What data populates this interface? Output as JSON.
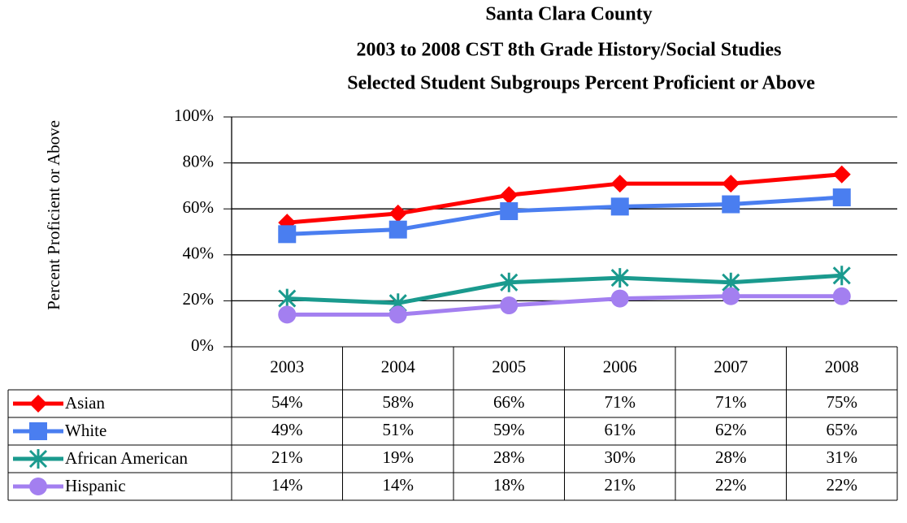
{
  "chart_data": {
    "type": "line",
    "title": [
      "Santa Clara County",
      "2003 to 2008 CST 8th Grade History/Social Studies",
      "Selected Student Subgroups Percent Proficient or Above"
    ],
    "y_label": "Percent Proficient or Above",
    "categories": [
      "2003",
      "2004",
      "2005",
      "2006",
      "2007",
      "2008"
    ],
    "series": [
      {
        "name": "Asian",
        "color": "#ff0000",
        "marker": "diamond",
        "values": [
          54,
          58,
          66,
          71,
          71,
          75
        ],
        "value_labels": [
          "54%",
          "58%",
          "66%",
          "71%",
          "71%",
          "75%"
        ]
      },
      {
        "name": "White",
        "color": "#4a7ef0",
        "marker": "square",
        "values": [
          49,
          51,
          59,
          61,
          62,
          65
        ],
        "value_labels": [
          "49%",
          "51%",
          "59%",
          "61%",
          "62%",
          "65%"
        ]
      },
      {
        "name": "African American",
        "color": "#1a9a8e",
        "marker": "asterisk",
        "values": [
          21,
          19,
          28,
          30,
          28,
          31
        ],
        "value_labels": [
          "21%",
          "19%",
          "28%",
          "30%",
          "28%",
          "31%"
        ]
      },
      {
        "name": "Hispanic",
        "color": "#a37ff0",
        "marker": "circle",
        "values": [
          14,
          14,
          18,
          21,
          22,
          22
        ],
        "value_labels": [
          "14%",
          "14%",
          "18%",
          "21%",
          "22%",
          "22%"
        ]
      }
    ],
    "ylim": [
      0,
      100
    ],
    "yticks": [
      {
        "value": 0,
        "label": "0%"
      },
      {
        "value": 20,
        "label": "20%"
      },
      {
        "value": 40,
        "label": "40%"
      },
      {
        "value": 60,
        "label": "60%"
      },
      {
        "value": 80,
        "label": "80%"
      },
      {
        "value": 100,
        "label": "100%"
      }
    ],
    "grid": true
  }
}
